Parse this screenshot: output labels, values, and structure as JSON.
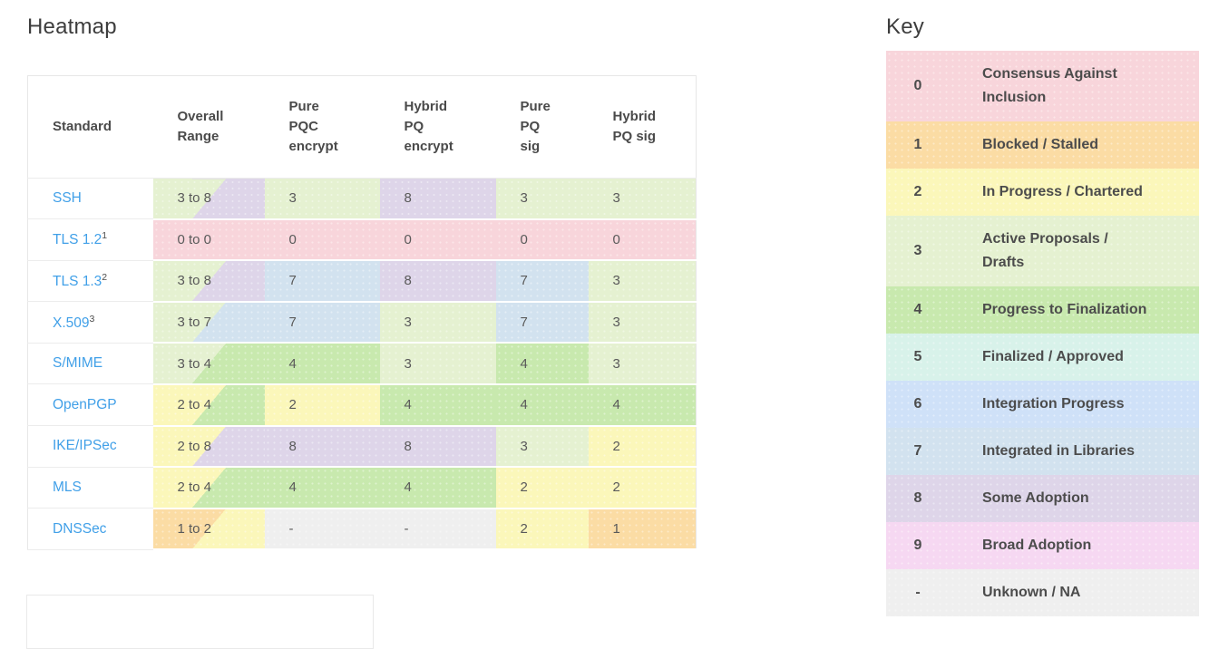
{
  "heatmap": {
    "title": "Heatmap",
    "columns": [
      {
        "id": "standard",
        "lines": [
          "Standard"
        ]
      },
      {
        "id": "overall-range",
        "lines": [
          "Overall",
          "Range"
        ]
      },
      {
        "id": "pure-pqc-encrypt",
        "lines": [
          "Pure",
          "PQC",
          "encrypt"
        ]
      },
      {
        "id": "hybrid-pq-encrypt",
        "lines": [
          "Hybrid",
          "PQ",
          "encrypt"
        ]
      },
      {
        "id": "pure-pq-sig",
        "lines": [
          "Pure",
          "PQ",
          "sig"
        ]
      },
      {
        "id": "hybrid-pq-sig",
        "lines": [
          "Hybrid",
          "PQ sig"
        ]
      }
    ],
    "rows": [
      {
        "standard": "SSH",
        "sup": "",
        "range_label": "3 to 8",
        "range_from": "3",
        "range_to": "8",
        "values": [
          "3",
          "8",
          "3",
          "3"
        ]
      },
      {
        "standard": "TLS 1.2",
        "sup": "1",
        "range_label": "0 to 0",
        "range_from": "0",
        "range_to": "0",
        "values": [
          "0",
          "0",
          "0",
          "0"
        ]
      },
      {
        "standard": "TLS 1.3",
        "sup": "2",
        "range_label": "3 to 8",
        "range_from": "3",
        "range_to": "8",
        "values": [
          "7",
          "8",
          "7",
          "3"
        ]
      },
      {
        "standard": "X.509",
        "sup": "3",
        "range_label": "3 to 7",
        "range_from": "3",
        "range_to": "7",
        "values": [
          "7",
          "3",
          "7",
          "3"
        ]
      },
      {
        "standard": "S/MIME",
        "sup": "",
        "range_label": "3 to 4",
        "range_from": "3",
        "range_to": "4",
        "values": [
          "4",
          "3",
          "4",
          "3"
        ]
      },
      {
        "standard": "OpenPGP",
        "sup": "",
        "range_label": "2 to 4",
        "range_from": "2",
        "range_to": "4",
        "values": [
          "2",
          "4",
          "4",
          "4"
        ]
      },
      {
        "standard": "IKE/IPSec",
        "sup": "",
        "range_label": "2 to 8",
        "range_from": "2",
        "range_to": "8",
        "values": [
          "8",
          "8",
          "3",
          "2"
        ]
      },
      {
        "standard": "MLS",
        "sup": "",
        "range_label": "2 to 4",
        "range_from": "2",
        "range_to": "4",
        "values": [
          "4",
          "4",
          "2",
          "2"
        ]
      },
      {
        "standard": "DNSSec",
        "sup": "",
        "range_label": "1 to 2",
        "range_from": "1",
        "range_to": "2",
        "values": [
          "-",
          "-",
          "2",
          "1"
        ]
      }
    ]
  },
  "key": {
    "title": "Key",
    "entries": [
      {
        "value": "0",
        "label": "Consensus Against\nInclusion"
      },
      {
        "value": "1",
        "label": "Blocked / Stalled"
      },
      {
        "value": "2",
        "label": "In Progress / Chartered"
      },
      {
        "value": "3",
        "label": "Active Proposals /\nDrafts"
      },
      {
        "value": "4",
        "label": "Progress to Finalization"
      },
      {
        "value": "5",
        "label": "Finalized / Approved"
      },
      {
        "value": "6",
        "label": "Integration Progress"
      },
      {
        "value": "7",
        "label": "Integrated in Libraries"
      },
      {
        "value": "8",
        "label": "Some Adoption"
      },
      {
        "value": "9",
        "label": "Broad Adoption"
      },
      {
        "value": "-",
        "label": "Unknown / NA"
      }
    ]
  },
  "colors": {
    "0": "#f8d5db",
    "1": "#fbdca4",
    "2": "#fbf7ba",
    "3": "#e5f1d1",
    "4": "#c8e9ae",
    "5": "#d8f2ea",
    "6": "#cfe1f8",
    "7": "#d2e2ef",
    "8": "#ded5e9",
    "9": "#f6d8f2",
    "-": "#efefef",
    "link": "#41a0e8"
  },
  "chart_data": {
    "type": "heatmap",
    "title": "Heatmap",
    "legend_title": "Key",
    "columns": [
      "Overall Range",
      "Pure PQC encrypt",
      "Hybrid PQ encrypt",
      "Pure PQ sig",
      "Hybrid PQ sig"
    ],
    "rows": [
      "SSH",
      "TLS 1.2",
      "TLS 1.3",
      "X.509",
      "S/MIME",
      "OpenPGP",
      "IKE/IPSec",
      "MLS",
      "DNSSec"
    ],
    "values": [
      [
        "3 to 8",
        3,
        8,
        3,
        3
      ],
      [
        "0 to 0",
        0,
        0,
        0,
        0
      ],
      [
        "3 to 8",
        7,
        8,
        7,
        3
      ],
      [
        "3 to 7",
        7,
        3,
        7,
        3
      ],
      [
        "3 to 4",
        4,
        3,
        4,
        3
      ],
      [
        "2 to 4",
        2,
        4,
        4,
        4
      ],
      [
        "2 to 8",
        8,
        8,
        3,
        2
      ],
      [
        "2 to 4",
        4,
        4,
        2,
        2
      ],
      [
        "1 to 2",
        null,
        null,
        2,
        1
      ]
    ],
    "scale": {
      "0": "Consensus Against Inclusion",
      "1": "Blocked / Stalled",
      "2": "In Progress / Chartered",
      "3": "Active Proposals / Drafts",
      "4": "Progress to Finalization",
      "5": "Finalized / Approved",
      "6": "Integration Progress",
      "7": "Integrated in Libraries",
      "8": "Some Adoption",
      "9": "Broad Adoption",
      "-": "Unknown / NA"
    }
  }
}
